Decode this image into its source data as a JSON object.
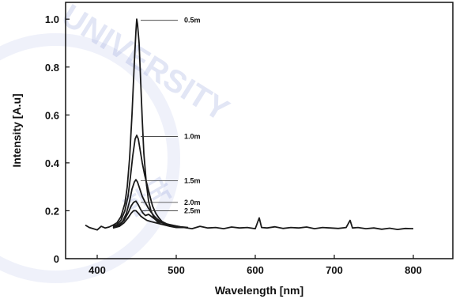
{
  "chart_data": {
    "type": "line",
    "xlabel": "Wavelength [nm]",
    "ylabel": "Intensity [A.u]",
    "xlim": [
      360,
      850
    ],
    "ylim": [
      0,
      1.07
    ],
    "xticks": [
      400,
      500,
      600,
      700,
      800
    ],
    "yticks": [
      0,
      0.2,
      0.4,
      0.6,
      0.8,
      1.0
    ],
    "ytick_labels": [
      "0",
      "0.2",
      "0.4",
      "0.6",
      "0.8",
      "1.0"
    ],
    "grid": false,
    "series": [
      {
        "name": "0.5m",
        "label_at": [
          455,
          0.995
        ],
        "points": [
          [
            385,
            0.14
          ],
          [
            390,
            0.13
          ],
          [
            395,
            0.125
          ],
          [
            400,
            0.12
          ],
          [
            405,
            0.135
          ],
          [
            410,
            0.128
          ],
          [
            415,
            0.132
          ],
          [
            420,
            0.14
          ],
          [
            425,
            0.15
          ],
          [
            430,
            0.175
          ],
          [
            435,
            0.23
          ],
          [
            438,
            0.3
          ],
          [
            441,
            0.42
          ],
          [
            444,
            0.6
          ],
          [
            447,
            0.82
          ],
          [
            449,
            0.95
          ],
          [
            450,
            1.0
          ],
          [
            451,
            0.98
          ],
          [
            453,
            0.9
          ],
          [
            455,
            0.74
          ],
          [
            457,
            0.58
          ],
          [
            459,
            0.44
          ],
          [
            462,
            0.32
          ],
          [
            465,
            0.24
          ],
          [
            468,
            0.2
          ],
          [
            472,
            0.17
          ],
          [
            476,
            0.155
          ],
          [
            480,
            0.145
          ],
          [
            486,
            0.14
          ],
          [
            492,
            0.135
          ],
          [
            500,
            0.13
          ],
          [
            510,
            0.13
          ],
          [
            520,
            0.125
          ],
          [
            530,
            0.135
          ],
          [
            540,
            0.128
          ],
          [
            550,
            0.13
          ],
          [
            560,
            0.125
          ],
          [
            570,
            0.132
          ],
          [
            580,
            0.128
          ],
          [
            590,
            0.13
          ],
          [
            600,
            0.125
          ],
          [
            605,
            0.17
          ],
          [
            608,
            0.13
          ],
          [
            615,
            0.128
          ],
          [
            625,
            0.133
          ],
          [
            635,
            0.126
          ],
          [
            645,
            0.13
          ],
          [
            655,
            0.128
          ],
          [
            665,
            0.132
          ],
          [
            675,
            0.125
          ],
          [
            685,
            0.13
          ],
          [
            695,
            0.128
          ],
          [
            705,
            0.126
          ],
          [
            715,
            0.13
          ],
          [
            720,
            0.16
          ],
          [
            723,
            0.128
          ],
          [
            730,
            0.13
          ],
          [
            740,
            0.125
          ],
          [
            750,
            0.128
          ],
          [
            760,
            0.123
          ],
          [
            770,
            0.127
          ],
          [
            780,
            0.122
          ],
          [
            790,
            0.126
          ],
          [
            800,
            0.125
          ]
        ]
      },
      {
        "name": "1.0m",
        "label_at": [
          455,
          0.51
        ],
        "points": [
          [
            420,
            0.135
          ],
          [
            425,
            0.142
          ],
          [
            430,
            0.16
          ],
          [
            435,
            0.2
          ],
          [
            439,
            0.26
          ],
          [
            442,
            0.34
          ],
          [
            445,
            0.43
          ],
          [
            448,
            0.5
          ],
          [
            450,
            0.515
          ],
          [
            452,
            0.5
          ],
          [
            454,
            0.46
          ],
          [
            457,
            0.4
          ],
          [
            460,
            0.35
          ],
          [
            463,
            0.31
          ],
          [
            466,
            0.27
          ],
          [
            470,
            0.22
          ],
          [
            474,
            0.19
          ],
          [
            478,
            0.17
          ],
          [
            482,
            0.155
          ],
          [
            488,
            0.145
          ],
          [
            495,
            0.138
          ],
          [
            505,
            0.133
          ],
          [
            515,
            0.13
          ]
        ]
      },
      {
        "name": "1.5m",
        "label_at": [
          455,
          0.325
        ],
        "points": [
          [
            420,
            0.13
          ],
          [
            426,
            0.138
          ],
          [
            432,
            0.155
          ],
          [
            437,
            0.19
          ],
          [
            441,
            0.24
          ],
          [
            444,
            0.29
          ],
          [
            447,
            0.32
          ],
          [
            449,
            0.33
          ],
          [
            451,
            0.32
          ],
          [
            454,
            0.29
          ],
          [
            457,
            0.26
          ],
          [
            460,
            0.24
          ],
          [
            464,
            0.215
          ],
          [
            468,
            0.195
          ],
          [
            472,
            0.178
          ],
          [
            476,
            0.165
          ],
          [
            480,
            0.155
          ],
          [
            486,
            0.145
          ],
          [
            494,
            0.138
          ],
          [
            505,
            0.132
          ]
        ]
      },
      {
        "name": "2.0m",
        "label_at": [
          455,
          0.235
        ],
        "points": [
          [
            420,
            0.13
          ],
          [
            428,
            0.14
          ],
          [
            434,
            0.16
          ],
          [
            439,
            0.19
          ],
          [
            443,
            0.22
          ],
          [
            446,
            0.235
          ],
          [
            449,
            0.24
          ],
          [
            452,
            0.225
          ],
          [
            455,
            0.205
          ],
          [
            458,
            0.19
          ],
          [
            461,
            0.18
          ],
          [
            465,
            0.185
          ],
          [
            469,
            0.175
          ],
          [
            473,
            0.165
          ],
          [
            478,
            0.155
          ],
          [
            485,
            0.147
          ],
          [
            495,
            0.14
          ],
          [
            505,
            0.133
          ]
        ]
      },
      {
        "name": "2.5m",
        "label_at": [
          455,
          0.2
        ],
        "points": [
          [
            420,
            0.128
          ],
          [
            428,
            0.135
          ],
          [
            434,
            0.15
          ],
          [
            439,
            0.17
          ],
          [
            443,
            0.19
          ],
          [
            446,
            0.2
          ],
          [
            449,
            0.2
          ],
          [
            452,
            0.19
          ],
          [
            455,
            0.178
          ],
          [
            459,
            0.168
          ],
          [
            463,
            0.16
          ],
          [
            468,
            0.155
          ],
          [
            474,
            0.15
          ],
          [
            480,
            0.145
          ],
          [
            488,
            0.14
          ],
          [
            498,
            0.135
          ],
          [
            508,
            0.13
          ]
        ]
      }
    ]
  },
  "colors": {
    "line": "#1a1a1a",
    "axis": "#111111",
    "watermark": "#7f8fd4"
  },
  "watermark": {
    "text": "UNIVERSITY",
    "seal_text": "한국"
  }
}
